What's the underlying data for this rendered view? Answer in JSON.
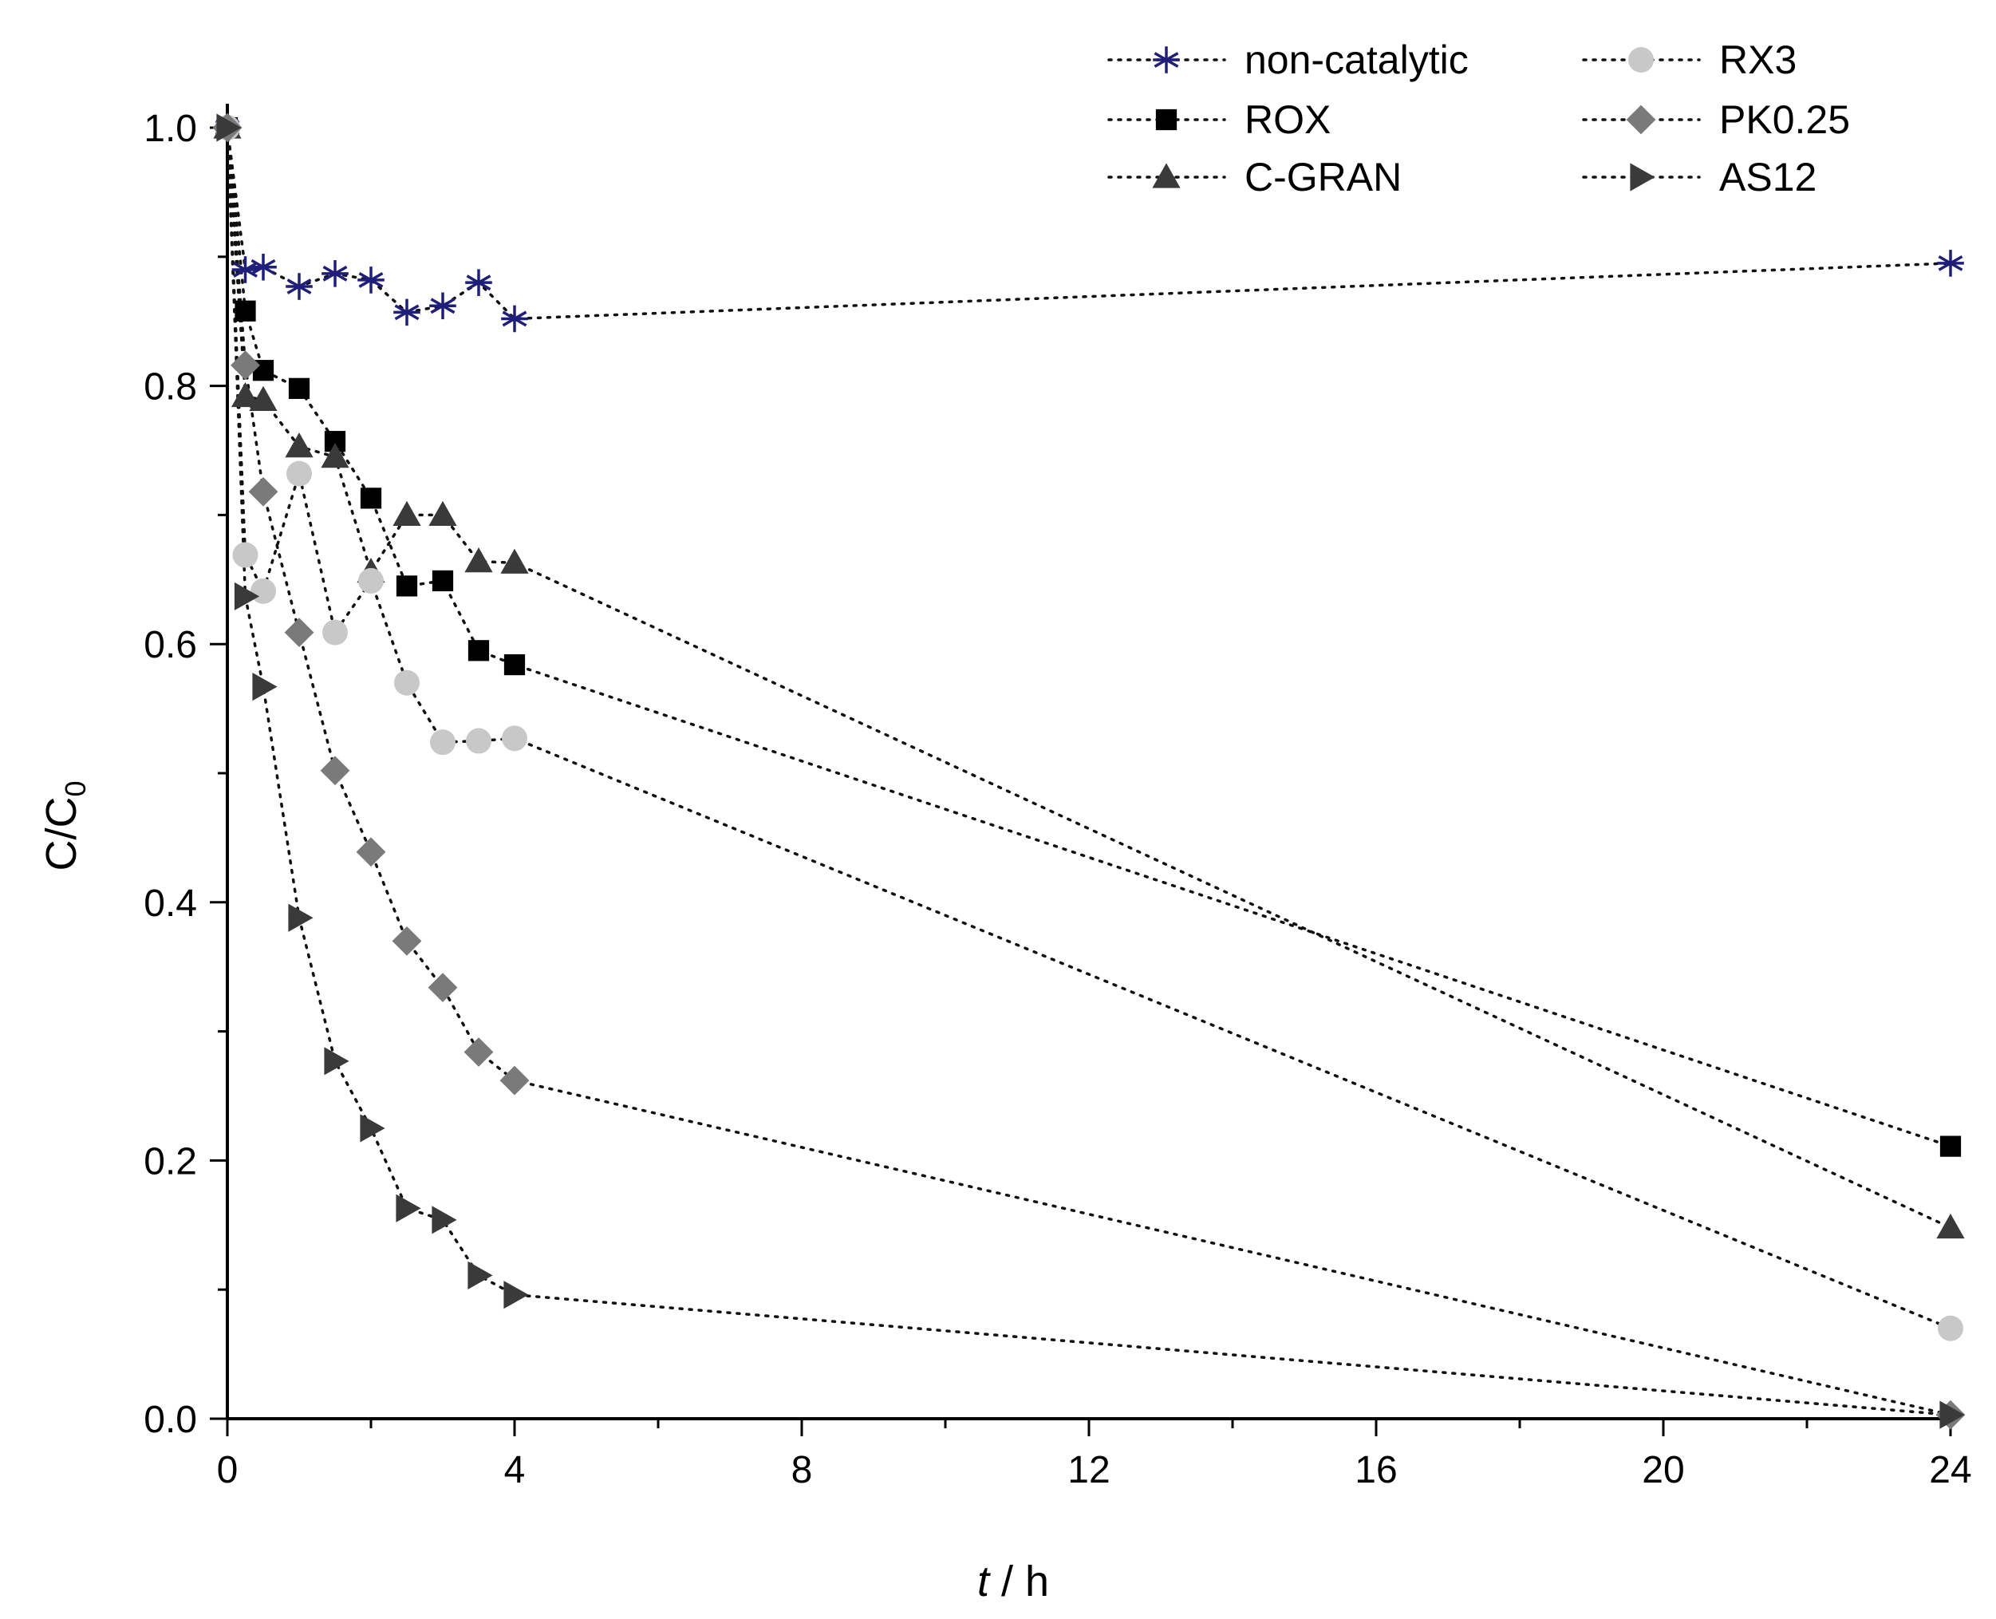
{
  "chart_data": {
    "type": "scatter",
    "title": "",
    "xlabel": {
      "italic": "t",
      "rest": " / h"
    },
    "ylabel": {
      "main": "C/C",
      "sub": "0"
    },
    "xlim": [
      0,
      24
    ],
    "ylim": [
      0,
      1.0
    ],
    "x_ticks": [
      0,
      4,
      8,
      12,
      16,
      20,
      24
    ],
    "x_tick_labels": [
      "0",
      "4",
      "8",
      "12",
      "16",
      "20",
      "24"
    ],
    "y_ticks": [
      0.0,
      0.2,
      0.4,
      0.6,
      0.8,
      1.0
    ],
    "y_tick_labels": [
      "0.0",
      "0.2",
      "0.4",
      "0.6",
      "0.8",
      "1.0"
    ],
    "grid": false,
    "legend_position": "top-right",
    "series": [
      {
        "name": "non-catalytic",
        "marker": "asterisk",
        "color": "#1f1f7a",
        "x": [
          0,
          0.25,
          0.5,
          1,
          1.5,
          2,
          2.5,
          3,
          3.5,
          4,
          24
        ],
        "y": [
          1.0,
          0.89,
          0.892,
          0.877,
          0.887,
          0.882,
          0.857,
          0.862,
          0.88,
          0.852,
          0.895
        ]
      },
      {
        "name": "ROX",
        "marker": "square",
        "color": "#000000",
        "x": [
          0,
          0.25,
          0.5,
          1,
          1.5,
          2,
          2.5,
          3,
          3.5,
          4,
          24
        ],
        "y": [
          1.0,
          0.858,
          0.812,
          0.798,
          0.757,
          0.713,
          0.645,
          0.649,
          0.595,
          0.584,
          0.211
        ]
      },
      {
        "name": "C-GRAN",
        "marker": "triangle-up",
        "color": "#3a3a3a",
        "x": [
          0,
          0.25,
          0.5,
          1,
          1.5,
          2,
          2.5,
          3,
          3.5,
          4,
          24
        ],
        "y": [
          1.0,
          0.792,
          0.789,
          0.753,
          0.745,
          0.656,
          0.7,
          0.7,
          0.664,
          0.663,
          0.148
        ]
      },
      {
        "name": "RX3",
        "marker": "circle",
        "color": "#c8c8c8",
        "x": [
          0,
          0.25,
          0.5,
          1,
          1.5,
          2,
          2.5,
          3,
          3.5,
          4,
          24
        ],
        "y": [
          1.0,
          0.669,
          0.641,
          0.732,
          0.609,
          0.649,
          0.57,
          0.524,
          0.525,
          0.527,
          0.07
        ]
      },
      {
        "name": "PK0.25",
        "marker": "diamond",
        "color": "#7a7a7a",
        "x": [
          0,
          0.25,
          0.5,
          1,
          1.5,
          2,
          2.5,
          3,
          3.5,
          4,
          24
        ],
        "y": [
          1.0,
          0.816,
          0.718,
          0.609,
          0.502,
          0.439,
          0.37,
          0.334,
          0.284,
          0.262,
          0.003
        ]
      },
      {
        "name": "AS12",
        "marker": "triangle-right",
        "color": "#3a3a3a",
        "x": [
          0,
          0.25,
          0.5,
          1,
          1.5,
          2,
          2.5,
          3,
          3.5,
          4,
          24
        ],
        "y": [
          1.0,
          0.637,
          0.567,
          0.388,
          0.277,
          0.225,
          0.163,
          0.154,
          0.111,
          0.096,
          0.003
        ]
      }
    ],
    "legend_order": [
      0,
      3,
      1,
      4,
      2,
      5
    ]
  }
}
